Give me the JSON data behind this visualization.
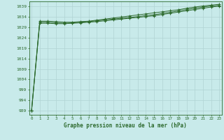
{
  "x": [
    0,
    1,
    2,
    3,
    4,
    5,
    6,
    7,
    8,
    9,
    10,
    11,
    12,
    13,
    14,
    15,
    16,
    17,
    18,
    19,
    20,
    21,
    22,
    23
  ],
  "line1": [
    989.0,
    1031.0,
    1031.0,
    1030.8,
    1030.8,
    1031.0,
    1031.2,
    1031.5,
    1031.8,
    1032.2,
    1032.6,
    1033.0,
    1033.4,
    1033.8,
    1034.2,
    1034.6,
    1035.2,
    1035.8,
    1036.4,
    1037.0,
    1037.6,
    1038.2,
    1038.8,
    1039.2
  ],
  "line2": [
    989.0,
    1031.5,
    1031.5,
    1031.2,
    1031.0,
    1031.2,
    1031.5,
    1031.8,
    1032.2,
    1032.6,
    1033.0,
    1033.4,
    1033.8,
    1034.2,
    1034.7,
    1035.1,
    1035.7,
    1036.3,
    1036.9,
    1037.6,
    1038.2,
    1038.8,
    1039.3,
    1039.6
  ],
  "line3": [
    989.0,
    1032.0,
    1032.0,
    1031.8,
    1031.5,
    1031.5,
    1031.8,
    1032.0,
    1032.5,
    1033.0,
    1033.5,
    1034.0,
    1034.5,
    1035.0,
    1035.5,
    1036.0,
    1036.5,
    1037.0,
    1037.5,
    1038.2,
    1038.8,
    1039.3,
    1039.7,
    1040.1
  ],
  "line_color": "#2d6a2d",
  "bg_color": "#c8eaea",
  "grid_color": "#b0d4d4",
  "title": "Graphe pression niveau de la mer (hPa)",
  "yticks": [
    989,
    994,
    999,
    1004,
    1009,
    1014,
    1019,
    1024,
    1029,
    1034,
    1039
  ],
  "ylim": [
    987,
    1041.5
  ],
  "xlim": [
    -0.3,
    23.3
  ],
  "xticks": [
    0,
    1,
    2,
    3,
    4,
    5,
    6,
    7,
    8,
    9,
    10,
    11,
    12,
    13,
    14,
    15,
    16,
    17,
    18,
    19,
    20,
    21,
    22,
    23
  ]
}
